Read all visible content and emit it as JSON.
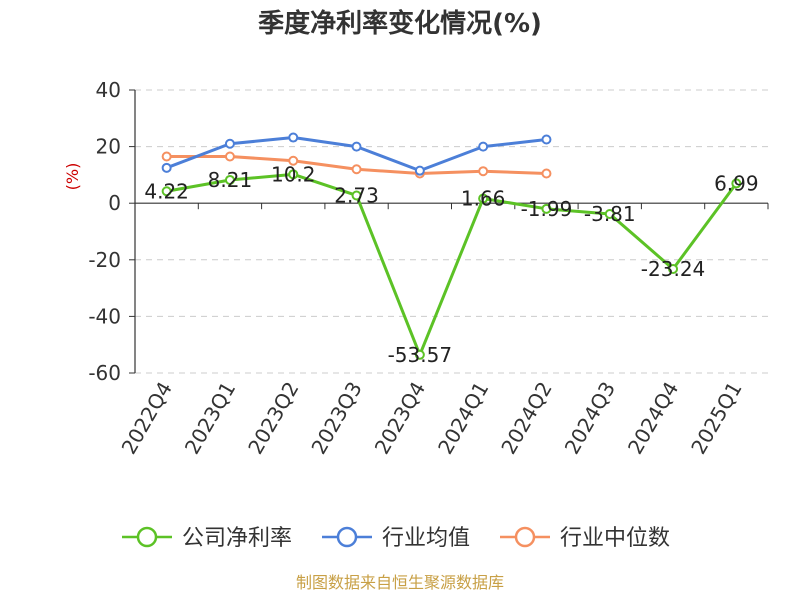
{
  "chart_data": {
    "type": "line",
    "title": "季度净利率变化情况(%)",
    "ylabel": "(%)",
    "categories": [
      "2022Q4",
      "2023Q1",
      "2023Q2",
      "2023Q3",
      "2023Q4",
      "2024Q1",
      "2024Q2",
      "2024Q3",
      "2024Q4",
      "2025Q1"
    ],
    "ylim": [
      -60,
      40
    ],
    "yticks": [
      40,
      20,
      0,
      -20,
      -40,
      -60
    ],
    "grid": true,
    "legend_position": "bottom",
    "series": [
      {
        "name": "公司净利率",
        "color": "#5cc226",
        "values": [
          4.22,
          8.21,
          10.2,
          2.73,
          -53.57,
          1.66,
          -1.99,
          -3.81,
          -23.24,
          6.99
        ],
        "labels": [
          "4.22",
          "8.21",
          "10.2",
          "2.73",
          "-53.57",
          "1.66",
          "-1.99",
          "-3.81",
          "-23.24",
          "6.99"
        ]
      },
      {
        "name": "行业均值",
        "color": "#4c7fd8",
        "values": [
          12.5,
          21.0,
          23.2,
          20.0,
          11.5,
          20.0,
          22.5,
          null,
          null,
          null
        ]
      },
      {
        "name": "行业中位数",
        "color": "#f59060",
        "values": [
          16.5,
          16.5,
          15.0,
          12.0,
          10.5,
          11.3,
          10.5,
          null,
          null,
          null
        ]
      }
    ]
  },
  "source": "制图数据来自恒生聚源数据库"
}
